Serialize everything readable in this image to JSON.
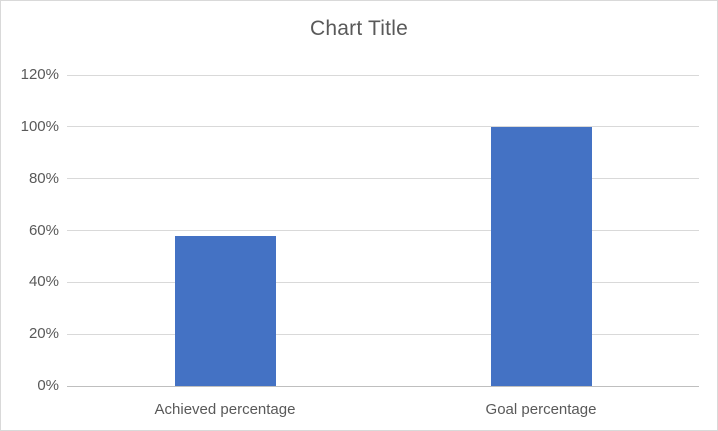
{
  "chart_data": {
    "type": "bar",
    "title": "Chart Title",
    "categories": [
      "Achieved percentage",
      "Goal percentage"
    ],
    "values": [
      58,
      100
    ],
    "unit": "%",
    "xlabel": "",
    "ylabel": "",
    "ylim": [
      0,
      120
    ],
    "ytick_step": 20,
    "ytick_labels": [
      "0%",
      "20%",
      "40%",
      "60%",
      "80%",
      "100%",
      "120%"
    ],
    "grid": "horizontal-only",
    "legend": "none",
    "data_labels": "none",
    "colors": {
      "bar": "#4472C4",
      "gridline": "#D9D9D9",
      "axis_line": "#BFBFBF",
      "text": "#595959",
      "background": "#FFFFFF",
      "border": "#D9D9D9"
    }
  }
}
